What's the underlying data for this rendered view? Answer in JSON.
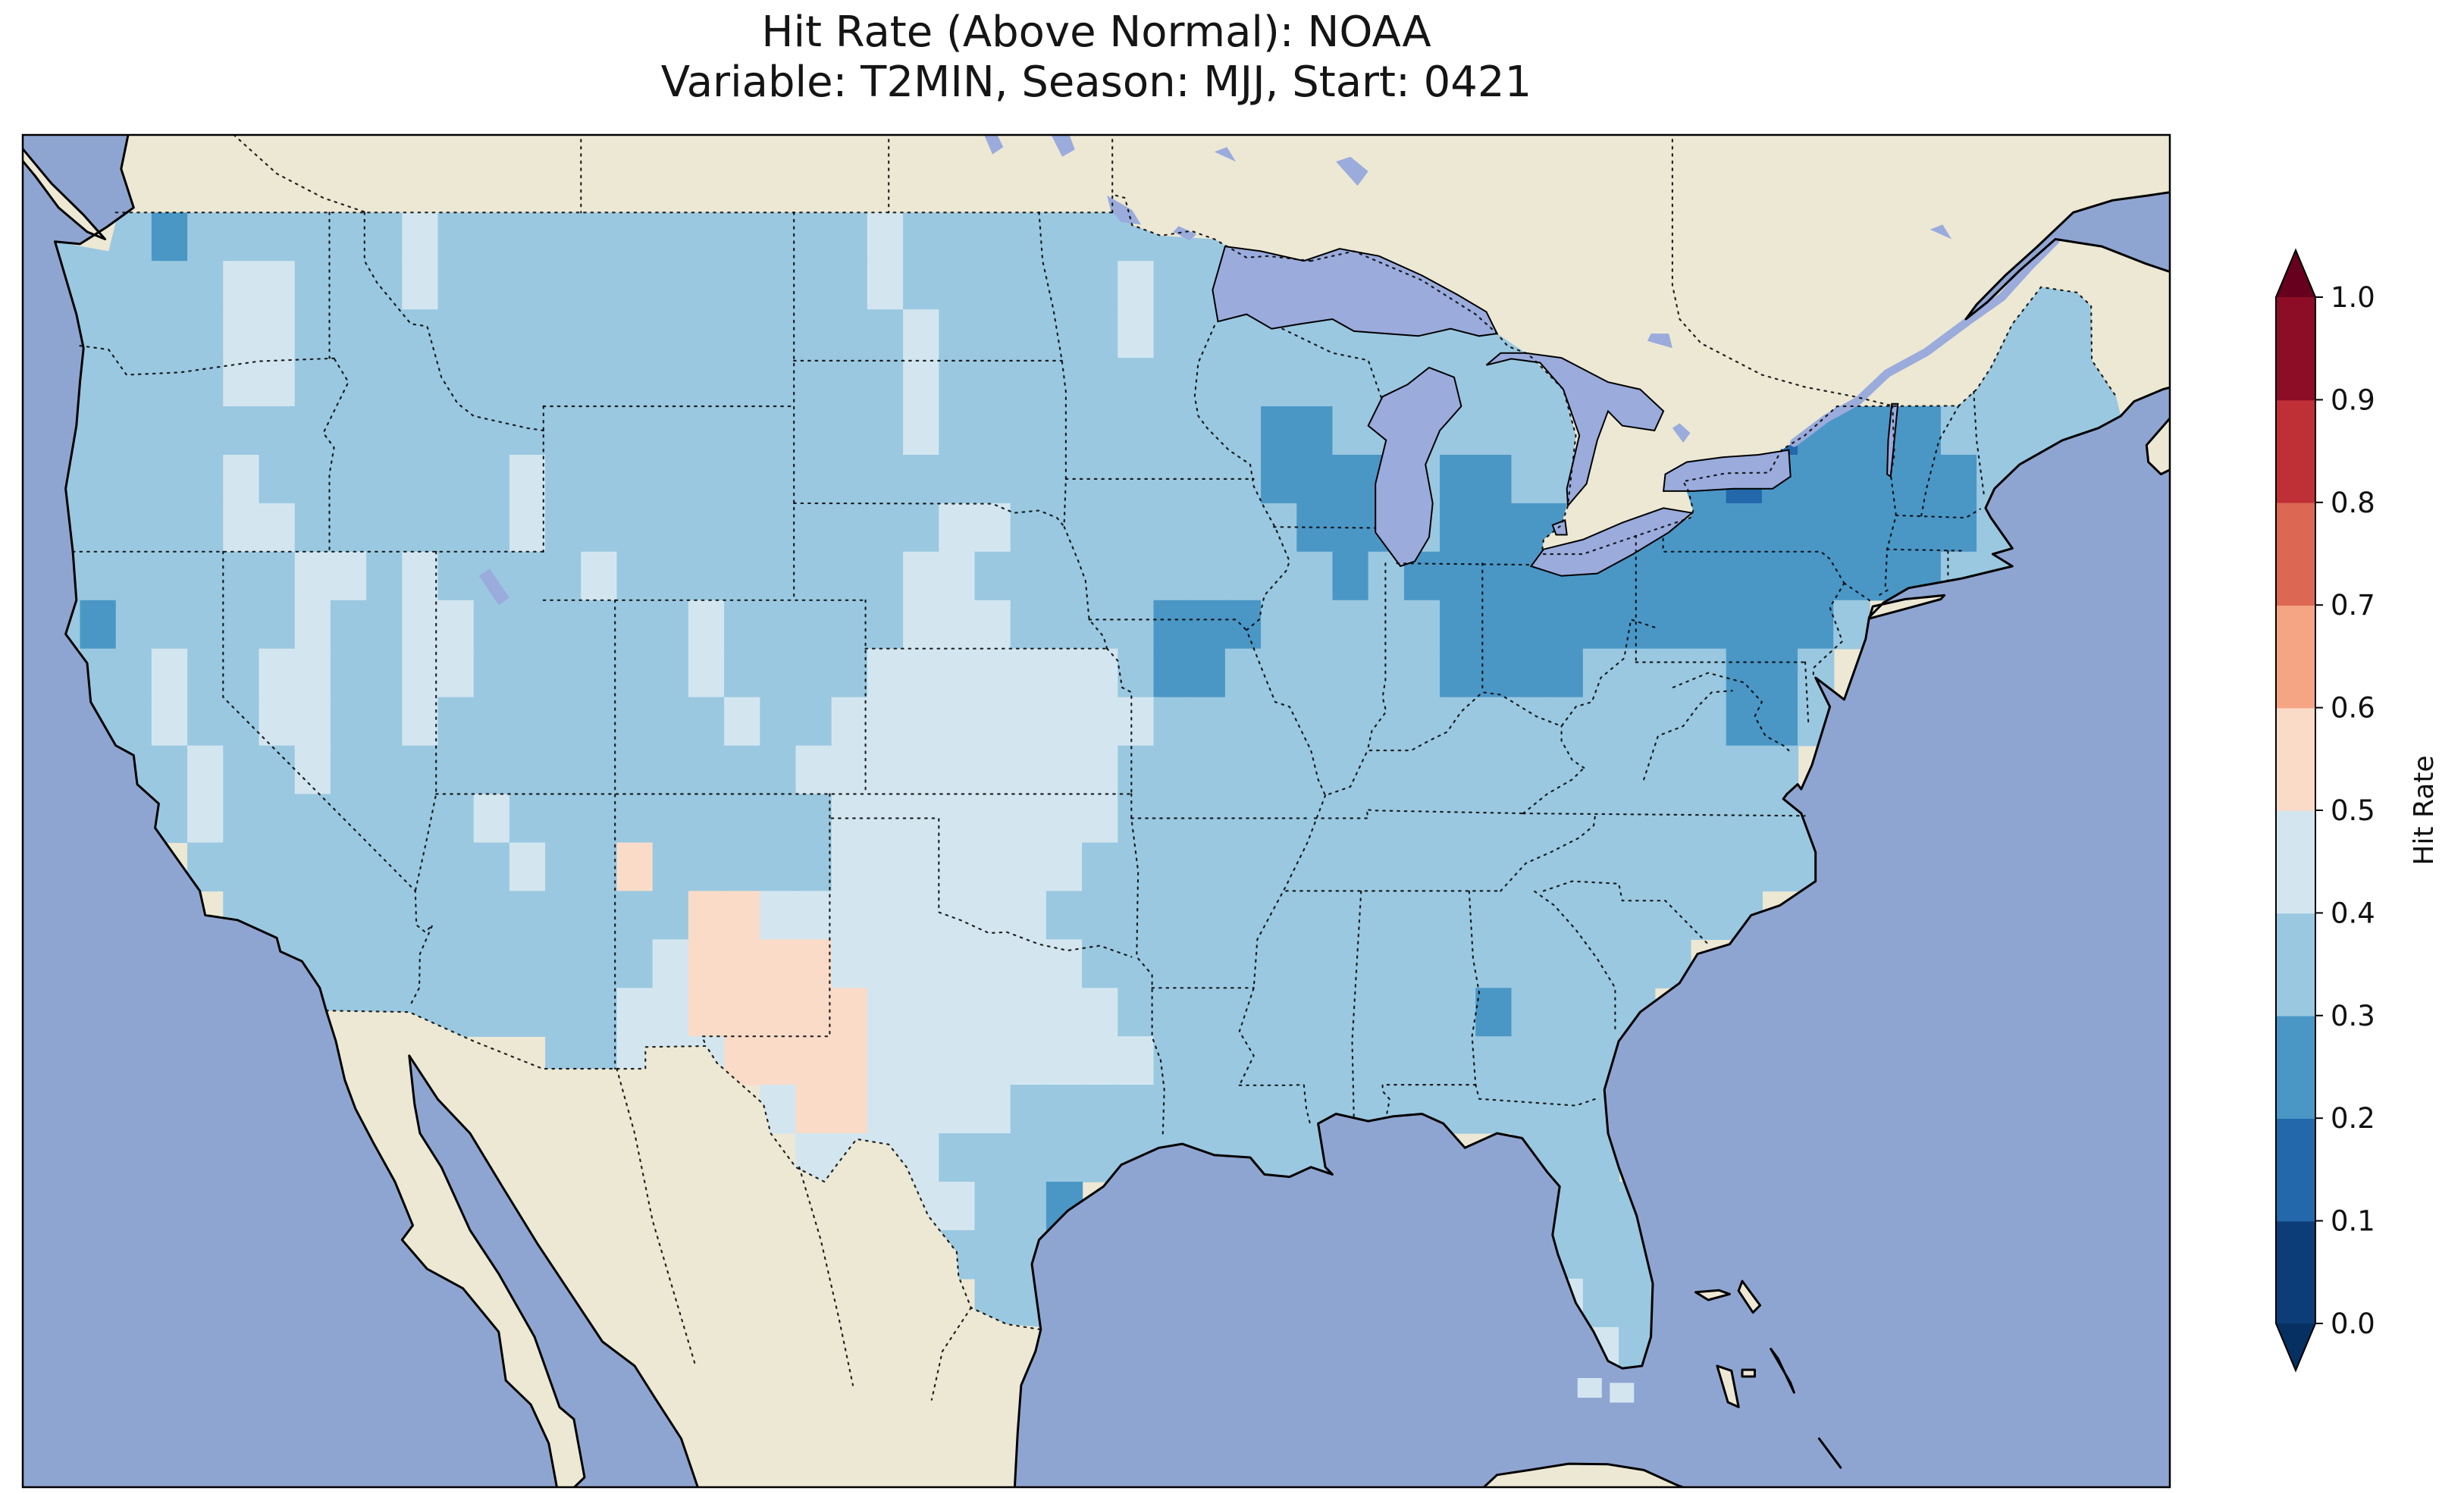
{
  "title": {
    "line1": "Hit Rate (Above Normal): NOAA",
    "line2": "Variable: T2MIN, Season: MJJ, Start: 0421"
  },
  "colorbar": {
    "label": "Hit Rate",
    "ticks": [
      "0.0",
      "0.1",
      "0.2",
      "0.3",
      "0.4",
      "0.5",
      "0.6",
      "0.7",
      "0.8",
      "0.9",
      "1.0"
    ],
    "box_colors": [
      "#0d3d78",
      "#2368ab",
      "#4a97c6",
      "#9ac8e0",
      "#d3e6f0",
      "#fadbc8",
      "#f5a583",
      "#dc6853",
      "#bf2f36",
      "#8c0d25"
    ],
    "arrow_low_color": "#053061",
    "arrow_high_color": "#67001f"
  },
  "map_data": {
    "type": "heatmap",
    "source": "NOAA",
    "variable": "T2MIN",
    "season": "MJJ",
    "start": "0421",
    "units": "Hit Rate",
    "bin_edges": [
      0.0,
      0.1,
      0.2,
      0.3,
      0.4,
      0.5,
      0.6,
      0.7,
      0.8,
      0.9,
      1.0
    ],
    "colors": {
      "ocean": "#8fa5d1",
      "land": "#ece8d4",
      "lake": "#9aabdc",
      "coastline": "#000000"
    },
    "grid": {
      "lon_west": -125,
      "lat_north": 50,
      "cell_deg": 1,
      "value_key": {
        "1": "0.1-0.2",
        "2": "0.2-0.3",
        "3": "0.3-0.4",
        "4": "0.4-0.5",
        "5": "0.5-0.6"
      },
      "palette": {
        "1": "#2368ab",
        "2": "#4a97c6",
        "3": "#9ac8e0",
        "4": "#d3e6f0",
        "5": "#fadbc8"
      },
      "rows": [
        [
          ".:58"
        ],
        [
          "3:3",
          "2:1",
          "3:6",
          "4:1",
          "3:12",
          "4:1",
          "3:10",
          ".:24"
        ],
        [
          "3:5",
          "4:2",
          "3:3",
          "4:1",
          "3:12",
          "4:1",
          "3:6",
          "4:1",
          "3:3",
          ".:21",
          "3:3"
        ],
        [
          "3:5",
          "4:2",
          "3:17",
          "4:1",
          "3:5",
          "4:1",
          "3:11",
          ".:12",
          "3:4"
        ],
        [
          "3:5",
          "4:2",
          "3:17",
          "4:1",
          "3:18",
          ".:9",
          "3:6"
        ],
        [
          "3:24",
          "4:1",
          "3:9",
          "2:2",
          "3:7",
          ".:4",
          "1:2",
          "2:4",
          "3:5"
        ],
        [
          "3:5",
          "4:1",
          "3:7",
          "4:1",
          "3:20",
          "2:4",
          "3:1",
          "2:2",
          "3:2",
          ".:2",
          "2:2",
          "1:1",
          "2:6",
          "3:2",
          ".:2"
        ],
        [
          "3:5",
          "4:2",
          "3:6",
          "4:1",
          "3:11",
          "4:2",
          "3:8",
          "2:3",
          "3:1",
          "2:15",
          "3:2",
          ".:2"
        ],
        [
          "3:7",
          "4:2",
          "3:1",
          "4:1",
          "3:4",
          "4:1",
          "3:8",
          "4:2",
          "3:10",
          "2:1",
          "3:1",
          "2:15",
          "3:2",
          ".:3"
        ],
        [
          "3:1",
          "2:1",
          "3:5",
          "4:1",
          "3:2",
          "4:2",
          "3:6",
          "4:1",
          "3:5",
          "4:3",
          "3:4",
          "2:3",
          "3:5",
          "2:11",
          "3:1",
          ".:7"
        ],
        [
          ".:1",
          "3:2",
          "4:1",
          "3:2",
          "4:2",
          "3:2",
          "4:2",
          "3:6",
          "4:1",
          "3:4",
          "4:7",
          "3:1",
          "2:2",
          "3:6",
          "2:4",
          "3:4",
          "2:2",
          "3:1",
          ".:8"
        ],
        [
          ".:1",
          "3:2",
          "4:1",
          "3:2",
          "4:2",
          "3:2",
          "4:1",
          "3:8",
          "4:1",
          "3:2",
          "4:9",
          "3:16",
          "2:2",
          "3:1",
          ".:8"
        ],
        [
          ".:2",
          "3:2",
          "4:1",
          "3:2",
          "4:1",
          "3:13",
          "4:9",
          "3:19",
          ".:9"
        ],
        [
          ".:3",
          "3:1",
          "4:1",
          "3:7",
          "4:1",
          "3:9",
          "4:8",
          "3:20",
          ".:8"
        ],
        [
          ".:4",
          "3:9",
          "4:1",
          "3:2",
          "5:1",
          "3:5",
          "4:7",
          "3:21",
          ".:8"
        ],
        [
          ".:5",
          "3:13",
          "5:2",
          "4:8",
          "3:20",
          ".:10"
        ],
        [
          ".:6",
          "3:11",
          "4:1",
          "5:4",
          "4:7",
          "3:17",
          ".:12"
        ],
        [
          ".:7",
          "3:9",
          "4:2",
          "5:5",
          "4:7",
          "3:10",
          "2:1",
          "3:4",
          ".:13"
        ],
        [
          ".:14",
          "3:2",
          "4:3",
          "5:4",
          "4:8",
          "3:13",
          ".:14"
        ],
        [
          ".:20",
          "4:1",
          "5:2",
          "4:4",
          "3:17",
          ".:14"
        ],
        [
          ".:21",
          "4:4",
          "3:12",
          ".:4",
          "3:3",
          ".:14"
        ],
        [
          ".:24",
          "4:2",
          "3:2",
          "2:1",
          ".:13",
          "3:3",
          ".:13"
        ],
        [
          ".:25",
          "3:4",
          ".:13",
          "3:3",
          ".:13"
        ],
        [
          ".:26",
          "3:2",
          ".:14",
          "4:1",
          "3:2",
          ".:13"
        ],
        [
          ".:26",
          "3:2",
          ".:15",
          "4:1",
          "3:1",
          ".:13"
        ],
        [
          ".:43",
          "4:1",
          ".:14"
        ]
      ]
    },
    "extra_cells": [
      {
        "lon": -82.15,
        "lat": 24.95,
        "bin": "4"
      },
      {
        "lon": -81.25,
        "lat": 24.85,
        "bin": "4"
      }
    ]
  }
}
